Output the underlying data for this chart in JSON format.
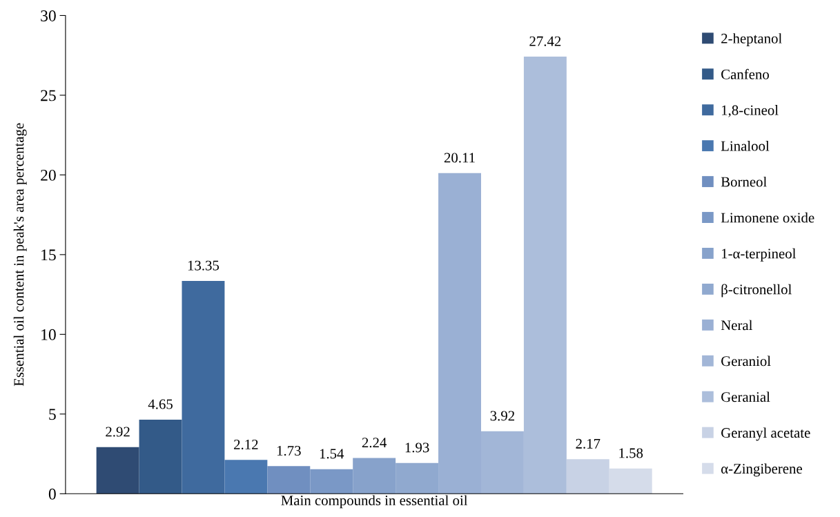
{
  "chart_data": {
    "type": "bar",
    "xlabel": "Main compounds in essential oil",
    "ylabel": "Essential oil content in peak's area percentage",
    "categories": [
      null
    ],
    "series": [
      {
        "name": "2-heptanol",
        "color": "#2f4b73",
        "values": [
          2.92
        ]
      },
      {
        "name": "Canfeno",
        "color": "#335a88",
        "values": [
          4.65
        ]
      },
      {
        "name": "1,8-cineol",
        "color": "#3f6a9e",
        "values": [
          13.35
        ]
      },
      {
        "name": "Linalool",
        "color": "#4a78b0",
        "values": [
          2.12
        ]
      },
      {
        "name": "Borneol",
        "color": "#708fc0",
        "values": [
          1.73
        ]
      },
      {
        "name": "Limonene oxide",
        "color": "#7a98c6",
        "values": [
          1.54
        ]
      },
      {
        "name": "1-α-terpineol",
        "color": "#87a2cb",
        "values": [
          2.24
        ]
      },
      {
        "name": "β-citronellol",
        "color": "#90a9cf",
        "values": [
          1.93
        ]
      },
      {
        "name": "Neral",
        "color": "#9ab0d4",
        "values": [
          20.11
        ]
      },
      {
        "name": "Geraniol",
        "color": "#a2b6d7",
        "values": [
          3.92
        ]
      },
      {
        "name": "Geranial",
        "color": "#acbedb",
        "values": [
          27.42
        ]
      },
      {
        "name": "Geranyl acetate",
        "color": "#c8d2e5",
        "values": [
          2.17
        ]
      },
      {
        "name": "α-Zingiberene",
        "color": "#d5dcea",
        "values": [
          1.58
        ]
      }
    ],
    "ylim": [
      0,
      30
    ],
    "yticks": [
      0,
      5,
      10,
      15,
      20,
      25,
      30
    ],
    "data_labels": true,
    "grid": false,
    "legend": "right"
  }
}
